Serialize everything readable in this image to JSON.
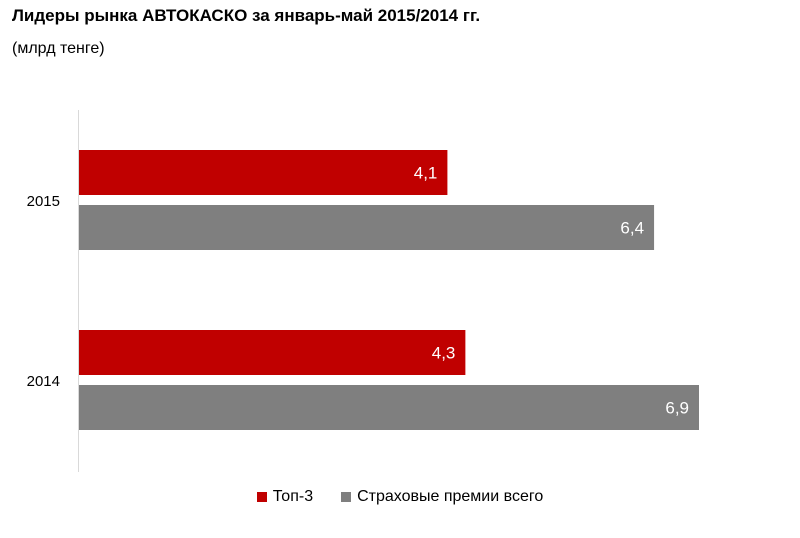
{
  "chart_data": {
    "type": "bar",
    "orientation": "horizontal",
    "title": "Лидеры рынка АВТОКАСКО за январь-май 2015/2014 гг.",
    "subtitle": "(млрд тенге)",
    "categories": [
      "2015",
      "2014"
    ],
    "series": [
      {
        "name": "Топ-3",
        "values": [
          4.1,
          4.3
        ],
        "labels": [
          "4,1",
          "4,3"
        ],
        "color": "#C00000"
      },
      {
        "name": "Страховые премии всего",
        "values": [
          6.4,
          6.9
        ],
        "labels": [
          "6,4",
          "6,9"
        ],
        "color": "#7F7F7F"
      }
    ],
    "xlim": [
      0,
      7.5
    ],
    "grid": false,
    "legend_position": "bottom"
  }
}
